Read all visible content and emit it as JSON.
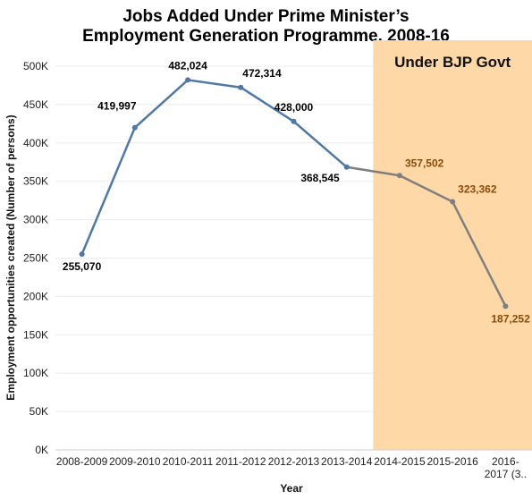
{
  "title_lines": [
    "Jobs Added Under Prime Minister’s",
    "Employment Generation Programme, 2008-16"
  ],
  "colors": {
    "line_main": "#4e79a7",
    "line_bjp": "#7f7f7f",
    "label_main": "#000000",
    "label_bjp": "#8a4b08",
    "band": "#ffd8a8",
    "grid": "#ececec"
  },
  "chart_data": {
    "type": "line",
    "title": "Jobs Added Under Prime Minister’s Employment Generation Programme, 2008-16",
    "xlabel": "Year",
    "ylabel": "Employment opportunities created  (Number of persons)",
    "categories": [
      "2008-2009",
      "2009-2010",
      "2010-2011",
      "2011-2012",
      "2012-2013",
      "2013-2014",
      "2014-2015",
      "2015-2016",
      "2016-2017 (3.."
    ],
    "category_labels": [
      [
        "2008-2009"
      ],
      [
        "2009-2010"
      ],
      [
        "2010-2011"
      ],
      [
        "2011-2012"
      ],
      [
        "2012-2013"
      ],
      [
        "2013-2014"
      ],
      [
        "2014-2015"
      ],
      [
        "2015-2016"
      ],
      [
        "2016-",
        "2017 (3.."
      ]
    ],
    "values": [
      255070,
      419997,
      482024,
      472314,
      428000,
      368545,
      357502,
      323362,
      187252
    ],
    "value_labels": [
      "255,070",
      "419,997",
      "482,024",
      "472,314",
      "428,000",
      "368,545",
      "357,502",
      "323,362",
      "187,252"
    ],
    "ylim": [
      0,
      500000
    ],
    "yticks": [
      0,
      50000,
      100000,
      150000,
      200000,
      250000,
      300000,
      350000,
      400000,
      450000,
      500000
    ],
    "ytick_labels": [
      "0K",
      "50K",
      "100K",
      "150K",
      "200K",
      "250K",
      "300K",
      "350K",
      "400K",
      "450K",
      "500K"
    ],
    "grid": true,
    "highlight_band": {
      "label": "Under BJP Govt",
      "from_category": "2014-2015",
      "to_category": "2016-2017 (3.."
    }
  }
}
